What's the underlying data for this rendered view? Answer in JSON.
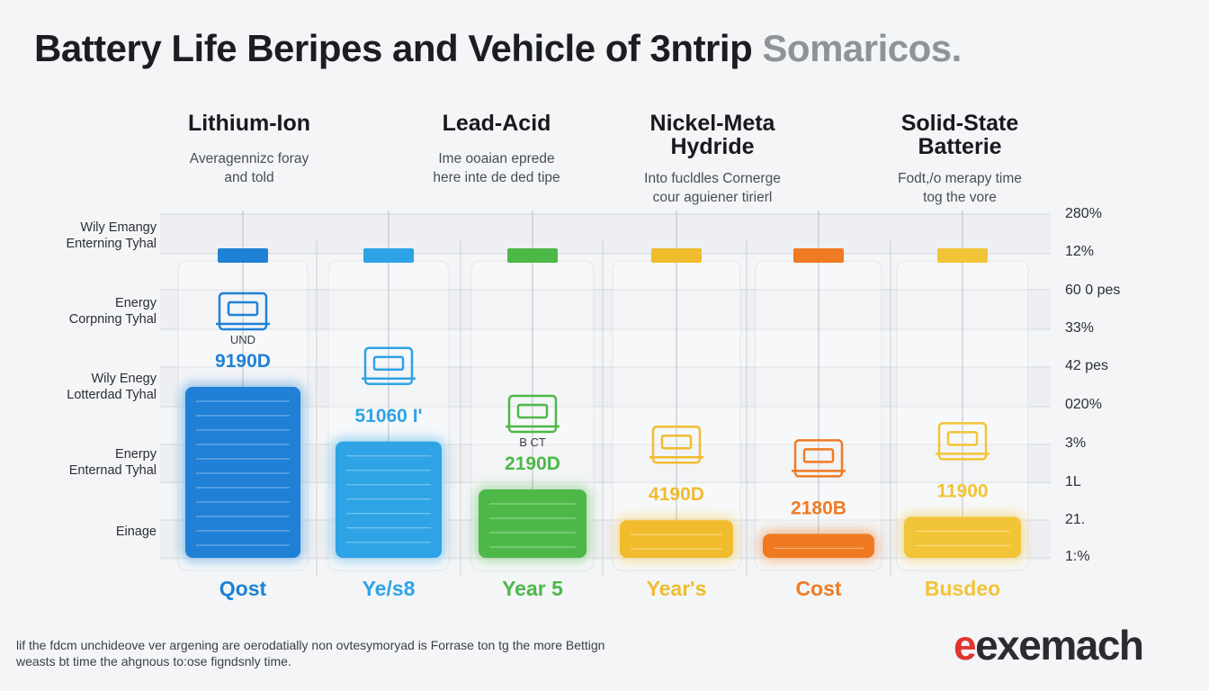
{
  "title": {
    "main": "Battery Life Beripes and Vehicle of 3ntrip",
    "gray": "Somaricos."
  },
  "groups": [
    {
      "title": [
        "Lithium-Ion"
      ],
      "sub": [
        "Averagennizc foray",
        "and told"
      ]
    },
    {
      "title": [
        "Lead-Acid"
      ],
      "sub": [
        "Ime ooaian eprede",
        "here inte de ded tipe"
      ]
    },
    {
      "title": [
        "Nickel-Meta",
        "Hydride"
      ],
      "sub": [
        "Into fucldles Cornerge",
        "cour aguiener tirierl"
      ]
    },
    {
      "title": [
        "Solid-State",
        "Batterie"
      ],
      "sub": [
        "Fodt,/o merapy time",
        "tog the vore"
      ]
    }
  ],
  "left_labels": [
    [
      "Wily Emangy",
      "Enterning Tyhal"
    ],
    [
      "Energy",
      "Corpning Tyhal"
    ],
    [
      "Wily Enegy",
      "Lotterdad Tyhal"
    ],
    [
      "Enerpy",
      "Enternad Tyhal"
    ],
    [
      "Einage"
    ]
  ],
  "right_ticks": [
    "280%",
    "12%",
    "60 0 pes",
    "33%",
    "42 pes",
    "020%",
    "3%",
    "1L",
    "21.",
    "1:%"
  ],
  "colors": {
    "blue_dark": "#1f80d6",
    "blue_light": "#2ea3e6",
    "green": "#4db848",
    "yellow": "#f0bc2e",
    "orange": "#f07a22",
    "gold": "#f2c437"
  },
  "chart_data": {
    "type": "bar",
    "categories": [
      "Qost",
      "Ye/s8",
      "Year 5",
      "Year's",
      "Cost",
      "Busdeo"
    ],
    "values": [
      100,
      68,
      40,
      22,
      14,
      24
    ],
    "value_labels": [
      "9190D",
      "51060 I'",
      "2190D",
      "4190D",
      "2180B",
      "11900"
    ],
    "sub_labels": [
      "UND",
      "",
      "B CT",
      "",
      "",
      ""
    ],
    "icons": [
      "car-battery-icon",
      "battery-meter-icon",
      "vehicle-icon",
      "engine-icon",
      "motor-icon",
      "battery-pack-icon"
    ],
    "bar_colors": [
      "#1f80d6",
      "#2ea3e6",
      "#4db848",
      "#f0bc2e",
      "#f07a22",
      "#f2c437"
    ],
    "ylim": [
      0,
      100
    ],
    "grid": true
  },
  "footnote": [
    "lif the fdcm unchideove ver argening are oerodatially non ovtesymoryad is Forrase ton tg the more Bettign",
    "weasts bt time the ahgnous to:ose figndsnly time."
  ],
  "logo": {
    "mark": "e",
    "text": "exemach"
  }
}
